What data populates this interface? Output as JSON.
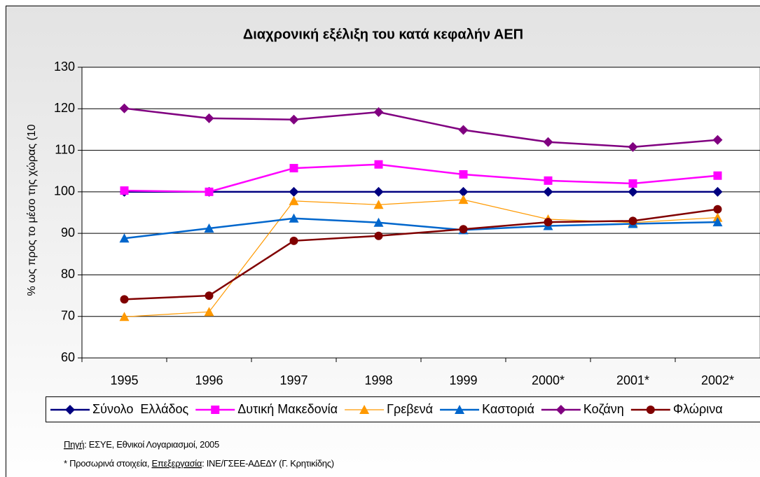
{
  "chart_data": {
    "type": "line",
    "title": "Διαχρονική εξέλιξη του κατά κεφαλήν ΑΕΠ",
    "y_label": "% ως προς το μέσο της χώρας (10",
    "categories": [
      "1995",
      "1996",
      "1997",
      "1998",
      "1999",
      "2000*",
      "2001*",
      "2002*"
    ],
    "series": [
      {
        "name": "Σύνολο  Ελλάδος",
        "color": "#000080",
        "marker": "diamond",
        "line_width": 2.5,
        "values": [
          100,
          100,
          100,
          100,
          100,
          100,
          100,
          100
        ]
      },
      {
        "name": "Δυτική Μακεδονία",
        "color": "#ff00ff",
        "marker": "square",
        "line_width": 2.5,
        "values": [
          100.3,
          100,
          105.7,
          106.6,
          104.2,
          102.7,
          102,
          103.9
        ]
      },
      {
        "name": "Γρεβενά",
        "color": "#ff9900",
        "marker": "triangle",
        "line_width": 1.2,
        "values": [
          69.9,
          71.1,
          97.8,
          96.9,
          98.1,
          93.4,
          92.6,
          93.8
        ]
      },
      {
        "name": "Καστοριά",
        "color": "#0066cc",
        "marker": "triangle",
        "line_width": 2.5,
        "values": [
          88.8,
          91.2,
          93.6,
          92.6,
          90.8,
          91.8,
          92.3,
          92.7
        ]
      },
      {
        "name": "Κοζάνη",
        "color": "#800080",
        "marker": "diamond",
        "line_width": 2.5,
        "values": [
          120.1,
          117.7,
          117.4,
          119.2,
          114.9,
          112,
          110.8,
          112.5
        ]
      },
      {
        "name": "Φλώρινα",
        "color": "#800000",
        "marker": "circle",
        "line_width": 2.5,
        "values": [
          74.1,
          75,
          88.2,
          89.4,
          91,
          92.7,
          93,
          95.8
        ]
      }
    ],
    "ylim": [
      60,
      130
    ],
    "yticks": [
      60,
      70,
      80,
      90,
      100,
      110,
      120,
      130
    ],
    "grid": true,
    "legend": "bottom",
    "notes": [
      [
        {
          "text": "Πηγή",
          "underline": true
        },
        {
          "text": ": ΕΣΥΕ, Εθνικοί Λογαριασμοί, 2005"
        }
      ],
      [
        {
          "text": "* Προσωρινά στοιχεία, "
        },
        {
          "text": "Επεξεργασία",
          "underline": true
        },
        {
          "text": ": ΙΝΕ/ΓΣΕΕ-ΑΔΕΔΥ (Γ. Κρητικίδης)"
        }
      ]
    ]
  }
}
